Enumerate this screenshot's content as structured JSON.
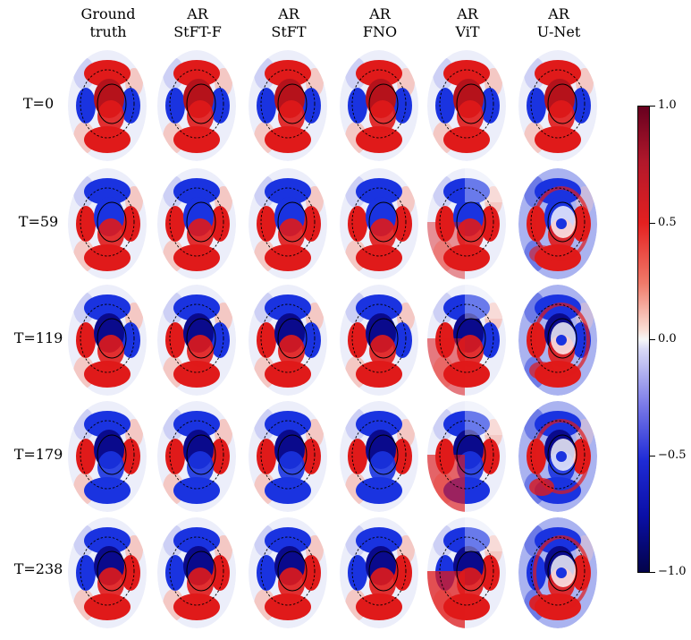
{
  "figure": {
    "columns": [
      {
        "line1": "Ground",
        "line2": "truth"
      },
      {
        "line1": "AR",
        "line2": "StFT-F"
      },
      {
        "line1": "AR",
        "line2": "StFT"
      },
      {
        "line1": "AR",
        "line2": "FNO"
      },
      {
        "line1": "AR",
        "line2": "ViT"
      },
      {
        "line1": "AR",
        "line2": "U-Net"
      }
    ],
    "rows": [
      "T=0",
      "T=59",
      "T=119",
      "T=179",
      "T=238"
    ],
    "colorbar": {
      "ticks": [
        "1.0",
        "0.5",
        "0.0",
        "−0.5",
        "−1.0"
      ],
      "max_color": "#67001f",
      "zero_color": "#f7f7f7",
      "min_color": "#03034a"
    }
  }
}
